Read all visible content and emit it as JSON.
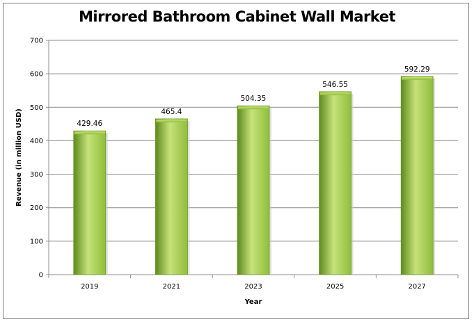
{
  "chart_data": {
    "type": "bar",
    "title": "Mirrored Bathroom Cabinet Wall Market",
    "xlabel": "Year",
    "ylabel": "Revenue (in million USD)",
    "categories": [
      "2019",
      "2021",
      "2023",
      "2025",
      "2027"
    ],
    "values": [
      429.46,
      465.4,
      504.35,
      546.55,
      592.29
    ],
    "data_labels": [
      "429.46",
      "465.4",
      "504.35",
      "546.55",
      "592.29"
    ],
    "ylim": [
      0,
      700
    ],
    "yticks": [
      0,
      100,
      200,
      300,
      400,
      500,
      600,
      700
    ],
    "grid": true,
    "legend": "none",
    "bar_color": "#8fbe3a",
    "bar_color_dark": "#5e8a1c",
    "bar_color_light": "#c6e27a"
  }
}
